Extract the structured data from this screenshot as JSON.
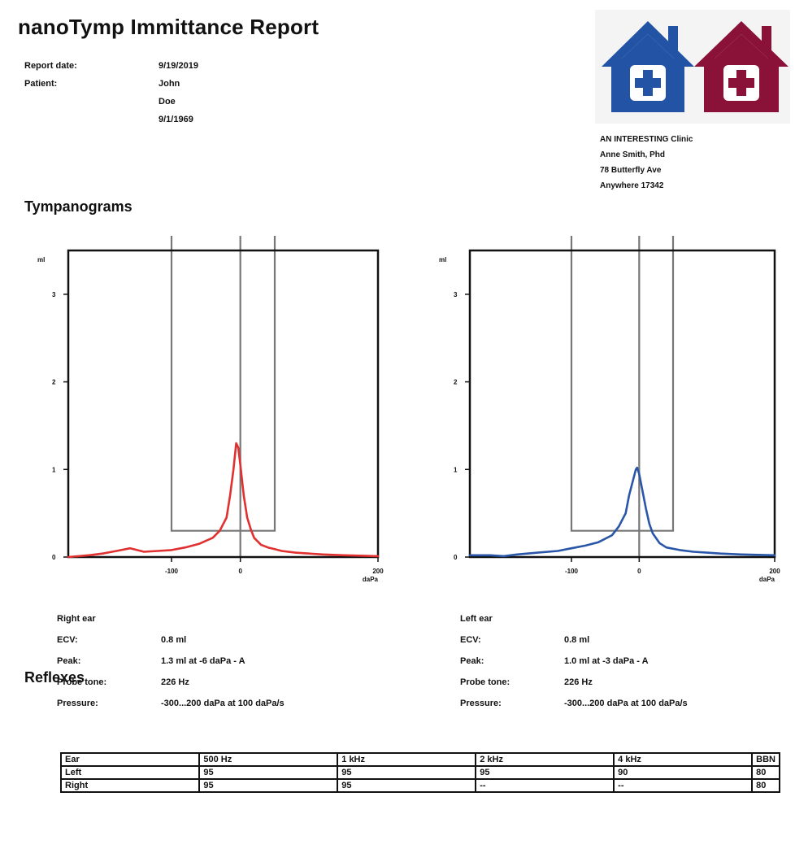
{
  "title": "nanoTymp Immittance Report",
  "report": {
    "date_label": "Report date:",
    "date_value": "9/19/2019",
    "patient_label": "Patient:",
    "patient_lines": [
      "John",
      "Doe",
      "9/1/1969"
    ]
  },
  "logo": {
    "colors": {
      "left": "#2353a4",
      "right": "#8a1238"
    }
  },
  "clinic": {
    "lines": [
      "AN INTERESTING Clinic",
      "Anne Smith, Phd",
      "78 Butterfly Ave",
      "Anywhere 17342"
    ]
  },
  "sections": {
    "tympanograms": "Tympanograms",
    "reflexes": "Reflexes"
  },
  "chart_data": [
    {
      "type": "line",
      "color": "#e03030",
      "xlim": [
        -250,
        200
      ],
      "ylim": [
        0,
        3.5
      ],
      "xticks": [
        "-100",
        "0",
        "200"
      ],
      "yticks": [
        "0",
        "1",
        "2",
        "3"
      ],
      "yunit": "ml",
      "xunit": "daPa",
      "box": {
        "x": [
          -100,
          50
        ],
        "y": [
          0.3,
          3.5
        ]
      },
      "x": [
        -250,
        -220,
        -200,
        -180,
        -160,
        -140,
        -120,
        -100,
        -80,
        -60,
        -40,
        -30,
        -20,
        -15,
        -10,
        -6,
        -3,
        0,
        5,
        10,
        15,
        20,
        30,
        40,
        50,
        60,
        80,
        100,
        120,
        150,
        200
      ],
      "y": [
        0.0,
        0.02,
        0.04,
        0.07,
        0.1,
        0.06,
        0.07,
        0.08,
        0.11,
        0.15,
        0.22,
        0.3,
        0.45,
        0.7,
        1.0,
        1.3,
        1.25,
        1.05,
        0.7,
        0.45,
        0.32,
        0.22,
        0.14,
        0.11,
        0.09,
        0.07,
        0.05,
        0.04,
        0.03,
        0.02,
        0.01
      ]
    },
    {
      "type": "line",
      "color": "#2a56a8",
      "xlim": [
        -250,
        200
      ],
      "ylim": [
        0,
        3.5
      ],
      "xticks": [
        "-100",
        "0",
        "200"
      ],
      "yticks": [
        "0",
        "1",
        "2",
        "3"
      ],
      "yunit": "ml",
      "xunit": "daPa",
      "box": {
        "x": [
          -100,
          50
        ],
        "y": [
          0.3,
          3.5
        ]
      },
      "x": [
        -250,
        -220,
        -200,
        -180,
        -150,
        -120,
        -100,
        -80,
        -60,
        -40,
        -30,
        -20,
        -15,
        -10,
        -5,
        -3,
        0,
        5,
        10,
        15,
        20,
        30,
        40,
        60,
        80,
        100,
        120,
        150,
        200
      ],
      "y": [
        0.02,
        0.02,
        0.01,
        0.03,
        0.05,
        0.07,
        0.1,
        0.13,
        0.17,
        0.25,
        0.35,
        0.5,
        0.7,
        0.85,
        1.0,
        1.02,
        0.95,
        0.75,
        0.55,
        0.38,
        0.27,
        0.16,
        0.11,
        0.08,
        0.06,
        0.05,
        0.04,
        0.03,
        0.02
      ]
    }
  ],
  "ears": {
    "right": {
      "title": "Right ear",
      "ecv_label": "ECV:",
      "ecv": "0.8 ml",
      "peak_label": "Peak:",
      "peak": "1.3 ml at -6 daPa  -  A",
      "probe_label": "Probe tone:",
      "probe": "226 Hz",
      "pressure_label": "Pressure:",
      "pressure": "-300...200 daPa at 100 daPa/s"
    },
    "left": {
      "title": "Left ear",
      "ecv_label": "ECV:",
      "ecv": "0.8 ml",
      "peak_label": "Peak:",
      "peak": "1.0 ml at -3 daPa  -  A",
      "probe_label": "Probe tone:",
      "probe": "226 Hz",
      "pressure_label": "Pressure:",
      "pressure": "-300...200 daPa at 100 daPa/s"
    }
  },
  "reflex_table": {
    "header": [
      "Ear",
      "500 Hz",
      "1 kHz",
      "2 kHz",
      "4 kHz",
      "BBN"
    ],
    "rows": [
      [
        "Left",
        "95",
        "95",
        "95",
        "90",
        "80"
      ],
      [
        "Right",
        "95",
        "95",
        "--",
        "--",
        "80"
      ]
    ]
  }
}
